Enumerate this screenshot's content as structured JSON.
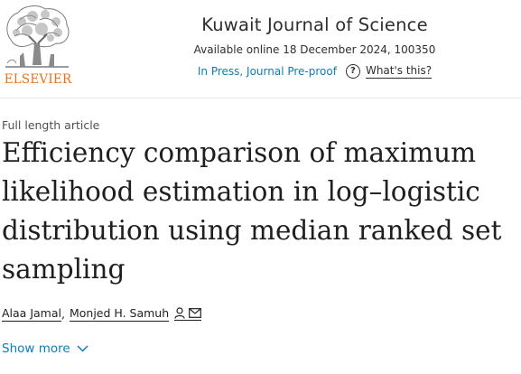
{
  "publisher": {
    "name": "ELSEVIER"
  },
  "journal": {
    "title": "Kuwait Journal of Science",
    "availability": "Available online 18 December 2024, 100350",
    "status": "In Press, Journal Pre-proof",
    "whats_this": "What's this?"
  },
  "article": {
    "type": "Full length article",
    "title": "Efficiency comparison of maximum likelihood estimation in log–logistic distribution using median ranked set sampling"
  },
  "authors": {
    "first": "Alaa Jamal",
    "separator": ",",
    "second": "Monjed H. Samuh"
  },
  "show_more": {
    "label": "Show more"
  },
  "colors": {
    "publisher_orange": "#e9711c",
    "link_blue": "#0c7dbb",
    "text_dark": "#1f1f1f"
  },
  "icons": [
    "elsevier-tree-logo",
    "question-circle-icon",
    "person-icon",
    "envelope-icon",
    "chevron-down-icon"
  ]
}
